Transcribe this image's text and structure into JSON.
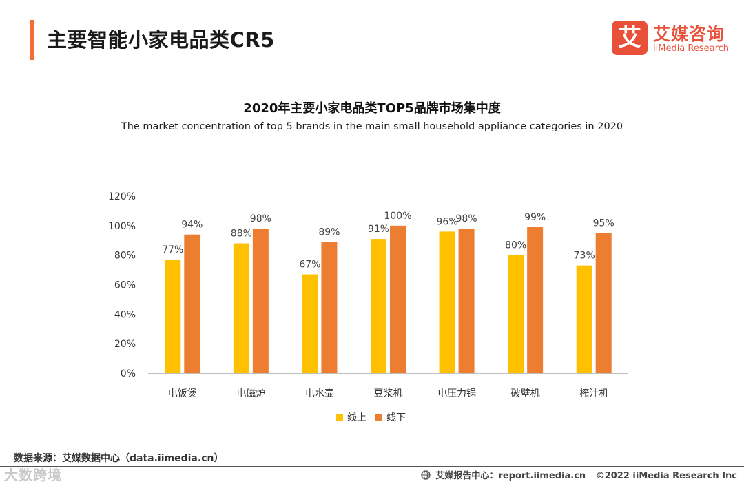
{
  "header": {
    "title": "主要智能小家电品类CR5",
    "accent_color": "#F26B38"
  },
  "logo": {
    "mark": "艾",
    "cn": "艾媒咨询",
    "en": "iiMedia Research",
    "color": "#E8503A"
  },
  "chart_data": {
    "type": "bar",
    "title": "2020年主要小家电品类TOP5品牌市场集中度",
    "subtitle": "The market concentration of top 5 brands in the main small household appliance categories in 2020",
    "categories": [
      "电饭煲",
      "电磁炉",
      "电水壶",
      "豆浆机",
      "电压力锅",
      "破壁机",
      "榨汁机"
    ],
    "series": [
      {
        "name": "线上",
        "values": [
          77,
          88,
          67,
          91,
          96,
          80,
          73
        ],
        "labels": [
          "77%",
          "88%",
          "67%",
          "91%",
          "96%",
          "80%",
          "73%"
        ],
        "color": "#FFC000"
      },
      {
        "name": "线下",
        "values": [
          94,
          98,
          89,
          100,
          98,
          99,
          95
        ],
        "labels": [
          "94%",
          "98%",
          "89%",
          "100%",
          "98%",
          "99%",
          "95%"
        ],
        "color": "#ED7D31"
      }
    ],
    "yticks": [
      "0%",
      "20%",
      "40%",
      "60%",
      "80%",
      "100%",
      "120%"
    ],
    "ylim": [
      0,
      120
    ],
    "legend_position": "bottom",
    "grid": false
  },
  "source": "数据来源：艾媒数据中心（data.iimedia.cn）",
  "watermark": "大数跨境",
  "footer": {
    "report": "艾媒报告中心：report.iimedia.cn",
    "copyright": "©2022  iiMedia Research  Inc"
  }
}
